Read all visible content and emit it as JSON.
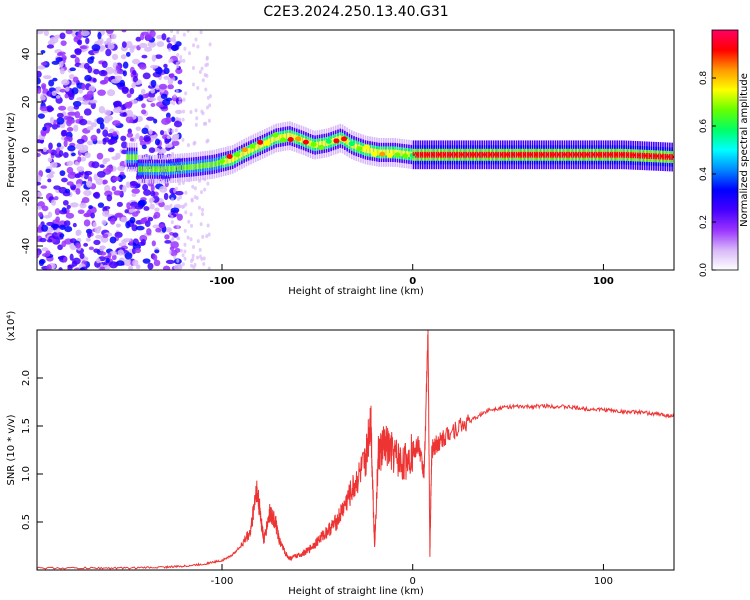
{
  "title": "C2E3.2024.250.13.40.G31",
  "chart_data": [
    {
      "type": "heatmap",
      "xlabel": "Height of straight line (km)",
      "ylabel": "Frequency (Hz)",
      "xlim": [
        -197,
        137
      ],
      "ylim": [
        -50,
        50
      ],
      "xticks": [
        -100,
        0,
        100
      ],
      "yticks": [
        -40,
        -20,
        0,
        20,
        40
      ],
      "colorbar": {
        "label": "Normalized spectral amplitude",
        "range": [
          0,
          1
        ],
        "ticks": [
          "0.0",
          "0.2",
          "0.4",
          "0.6",
          "0.8"
        ],
        "colors": [
          "#ffffff",
          "#d8b8f8",
          "#9933ff",
          "#4400ff",
          "#0000ff",
          "#0088ff",
          "#00ffff",
          "#00ff66",
          "#66ff00",
          "#ffff00",
          "#ff9900",
          "#ff0000",
          "#ff0066"
        ]
      },
      "ridge": {
        "x": [
          -145,
          -130,
          -115,
          -105,
          -95,
          -88,
          -80,
          -72,
          -65,
          -58,
          -52,
          -45,
          -38,
          -32,
          -25,
          -18,
          -10,
          0,
          20,
          50,
          80,
          110,
          137
        ],
        "y": [
          -8,
          -8,
          -7,
          -6,
          -4,
          -1,
          2,
          5,
          6,
          4,
          2,
          3,
          5,
          2,
          0,
          -1,
          -1,
          -2,
          -2,
          -2,
          -2,
          -2,
          -3
        ]
      }
    },
    {
      "type": "line",
      "xlabel": "Height of straight line (km)",
      "ylabel": "SNR (10 * v/v)",
      "multiplier": "(x10⁴)",
      "xlim": [
        -197,
        137
      ],
      "ylim": [
        0,
        2.5
      ],
      "xticks": [
        -100,
        0,
        100
      ],
      "yticks": [
        0.5,
        1.0,
        1.5,
        2.0
      ],
      "color": "#ee3333",
      "x": [
        -197,
        -170,
        -150,
        -130,
        -120,
        -110,
        -100,
        -95,
        -90,
        -85,
        -82,
        -80,
        -78,
        -75,
        -72,
        -70,
        -65,
        -60,
        -55,
        -50,
        -45,
        -40,
        -35,
        -30,
        -25,
        -22,
        -20,
        -18,
        -15,
        -10,
        -5,
        0,
        3,
        6,
        8,
        9,
        10,
        12,
        15,
        20,
        30,
        40,
        50,
        60,
        70,
        80,
        90,
        100,
        110,
        120,
        130,
        137
      ],
      "y": [
        0.02,
        0.02,
        0.02,
        0.03,
        0.04,
        0.06,
        0.1,
        0.15,
        0.25,
        0.4,
        0.85,
        0.6,
        0.3,
        0.6,
        0.5,
        0.3,
        0.12,
        0.15,
        0.2,
        0.3,
        0.4,
        0.5,
        0.7,
        0.9,
        1.1,
        1.6,
        0.25,
        1.2,
        1.3,
        1.2,
        1.1,
        1.25,
        1.3,
        1.0,
        2.48,
        0.2,
        1.25,
        1.3,
        1.35,
        1.45,
        1.55,
        1.67,
        1.7,
        1.7,
        1.71,
        1.7,
        1.68,
        1.67,
        1.65,
        1.64,
        1.62,
        1.6
      ]
    }
  ]
}
